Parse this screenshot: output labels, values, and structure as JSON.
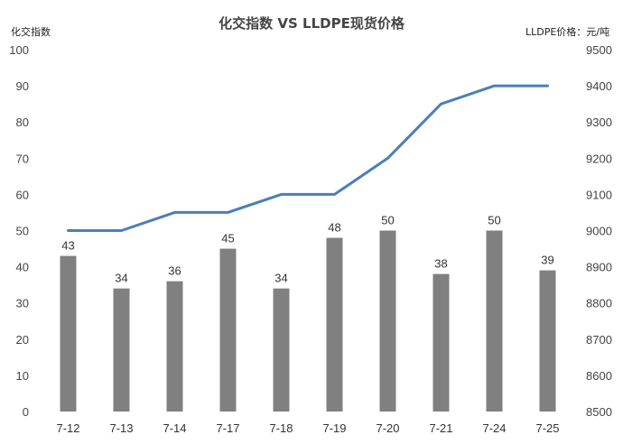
{
  "chart_data": {
    "type": "bar",
    "title": "化交指数 VS LLDPE现货价格",
    "ylabel": "化交指数",
    "y2label": "LLDPE价格：元/吨",
    "ylim": [
      0,
      100
    ],
    "y2lim": [
      8500,
      9500
    ],
    "yticks": [
      0,
      10,
      20,
      30,
      40,
      50,
      60,
      70,
      80,
      90,
      100
    ],
    "y2ticks": [
      8500,
      8600,
      8700,
      8800,
      8900,
      9000,
      9100,
      9200,
      9300,
      9400,
      9500
    ],
    "categories": [
      "7-12",
      "7-13",
      "7-14",
      "7-17",
      "7-18",
      "7-19",
      "7-20",
      "7-21",
      "7-24",
      "7-25"
    ],
    "grid": false,
    "series": [
      {
        "type": "bar",
        "axis": "left",
        "color": "#808080",
        "values": [
          43,
          34,
          36,
          45,
          34,
          48,
          50,
          38,
          50,
          39
        ],
        "data_labels": [
          "43",
          "34",
          "36",
          "45",
          "34",
          "48",
          "50",
          "38",
          "50",
          "39"
        ]
      },
      {
        "type": "line",
        "axis": "right",
        "color": "#4a7ebb",
        "values": [
          9000,
          9000,
          9050,
          9050,
          9100,
          9100,
          9200,
          9350,
          9400,
          9400
        ]
      }
    ]
  }
}
